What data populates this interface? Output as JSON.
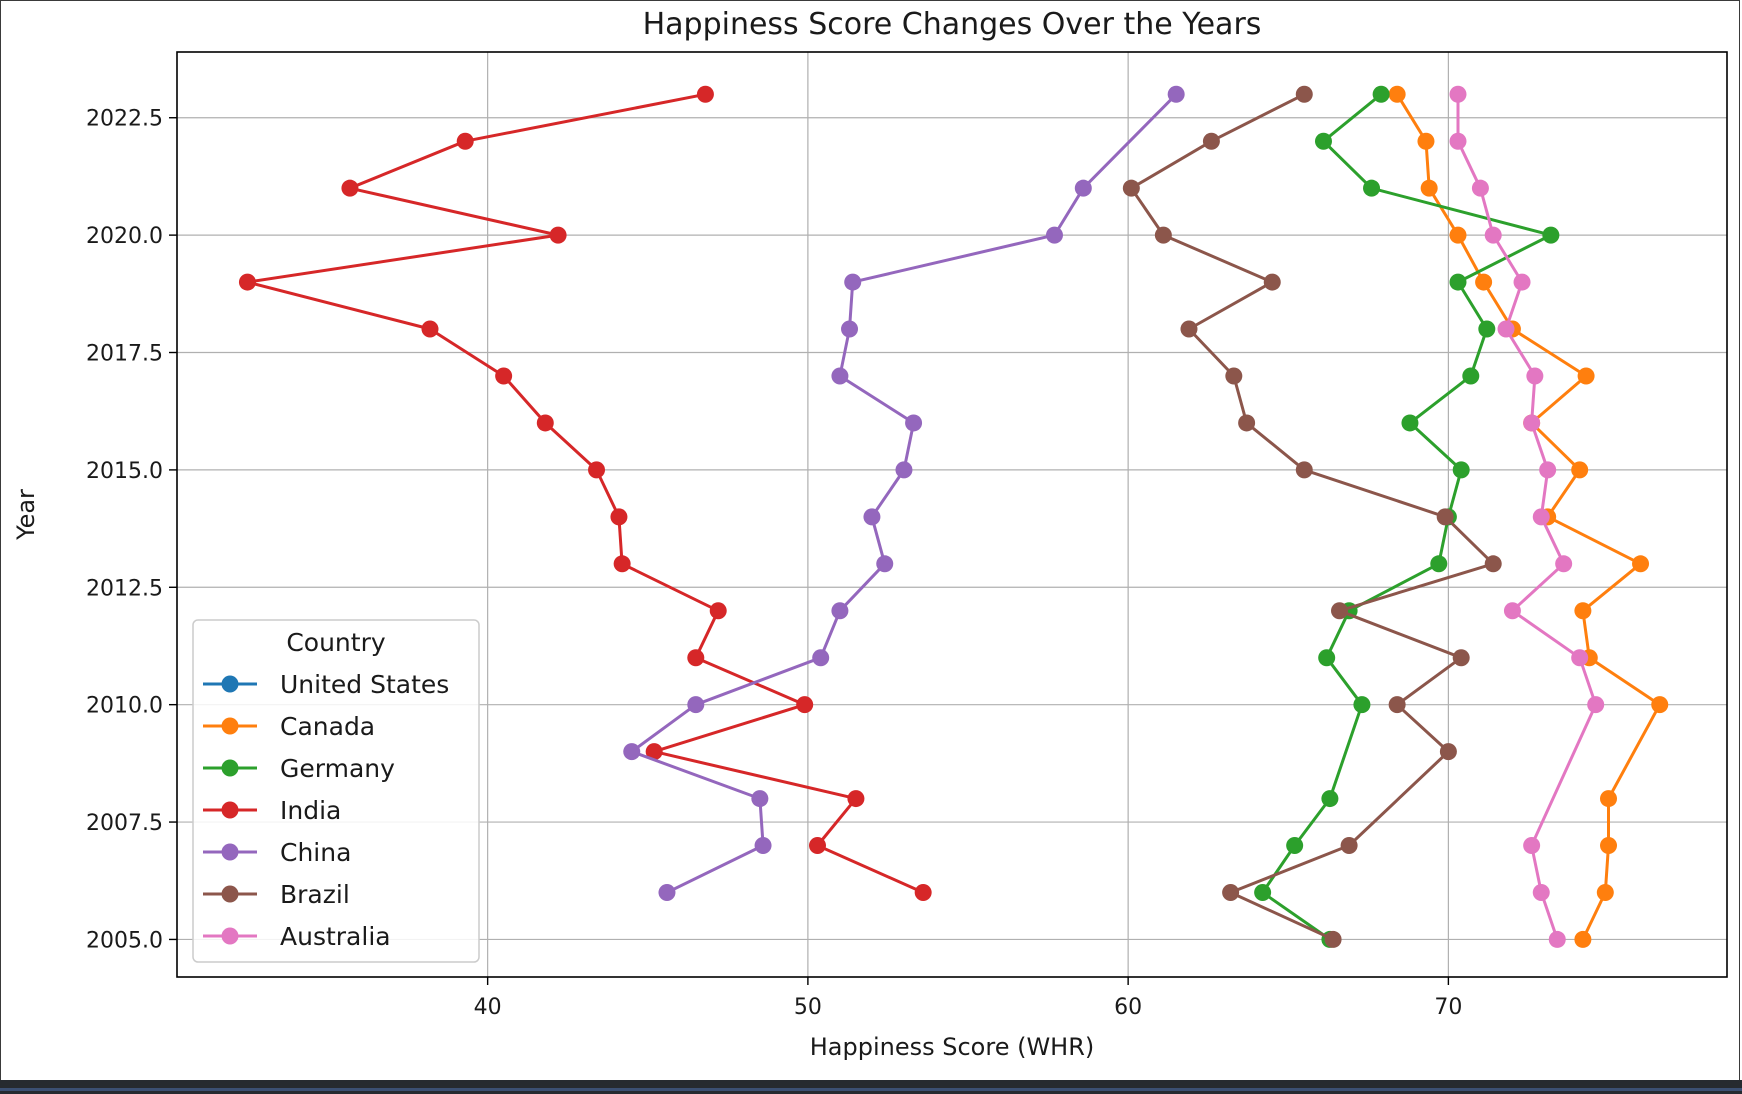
{
  "chart_data": {
    "type": "line",
    "title": "Happiness Score Changes Over the Years",
    "xlabel": "Happiness Score (WHR)",
    "ylabel": "Year",
    "xlim": [
      30.3,
      78.7
    ],
    "ylim": [
      2004.2,
      2023.9
    ],
    "xticks": [
      40,
      50,
      60,
      70
    ],
    "xtick_labels": [
      "40",
      "50",
      "60",
      "70"
    ],
    "yticks": [
      2005.0,
      2007.5,
      2010.0,
      2012.5,
      2015.0,
      2017.5,
      2020.0,
      2022.5
    ],
    "ytick_labels": [
      "2005.0",
      "2007.5",
      "2010.0",
      "2012.5",
      "2015.0",
      "2017.5",
      "2020.0",
      "2022.5"
    ],
    "grid": true,
    "legend": {
      "title": "Country",
      "placement": "lower-left"
    },
    "series": [
      {
        "name": "United States",
        "color": "#1f77b4",
        "points": []
      },
      {
        "name": "Canada",
        "color": "#ff7f0e",
        "points": [
          [
            74.2,
            2005
          ],
          [
            74.9,
            2006
          ],
          [
            75.0,
            2007
          ],
          [
            75.0,
            2008
          ],
          [
            76.6,
            2010
          ],
          [
            74.4,
            2011
          ],
          [
            74.2,
            2012
          ],
          [
            76.0,
            2013
          ],
          [
            73.1,
            2014
          ],
          [
            74.1,
            2015
          ],
          [
            72.6,
            2016
          ],
          [
            74.3,
            2017
          ],
          [
            72.0,
            2018
          ],
          [
            71.1,
            2019
          ],
          [
            70.3,
            2020
          ],
          [
            69.4,
            2021
          ],
          [
            69.3,
            2022
          ],
          [
            68.4,
            2023
          ]
        ]
      },
      {
        "name": "Germany",
        "color": "#2ca02c",
        "points": [
          [
            66.3,
            2005
          ],
          [
            64.2,
            2006
          ],
          [
            65.2,
            2007
          ],
          [
            66.3,
            2008
          ],
          [
            67.3,
            2010
          ],
          [
            66.2,
            2011
          ],
          [
            66.9,
            2012
          ],
          [
            69.7,
            2013
          ],
          [
            70.0,
            2014
          ],
          [
            70.4,
            2015
          ],
          [
            68.8,
            2016
          ],
          [
            70.7,
            2017
          ],
          [
            71.2,
            2018
          ],
          [
            70.3,
            2019
          ],
          [
            73.2,
            2020
          ],
          [
            67.6,
            2021
          ],
          [
            66.1,
            2022
          ],
          [
            67.9,
            2023
          ]
        ]
      },
      {
        "name": "India",
        "color": "#d62728",
        "points": [
          [
            53.6,
            2006
          ],
          [
            50.3,
            2007
          ],
          [
            51.5,
            2008
          ],
          [
            45.2,
            2009
          ],
          [
            49.9,
            2010
          ],
          [
            46.5,
            2011
          ],
          [
            47.2,
            2012
          ],
          [
            44.2,
            2013
          ],
          [
            44.1,
            2014
          ],
          [
            43.4,
            2015
          ],
          [
            41.8,
            2016
          ],
          [
            40.5,
            2017
          ],
          [
            38.2,
            2018
          ],
          [
            32.5,
            2019
          ],
          [
            42.2,
            2020
          ],
          [
            35.7,
            2021
          ],
          [
            39.3,
            2022
          ],
          [
            46.8,
            2023
          ]
        ]
      },
      {
        "name": "China",
        "color": "#9467bd",
        "points": [
          [
            45.6,
            2006
          ],
          [
            48.6,
            2007
          ],
          [
            48.5,
            2008
          ],
          [
            44.5,
            2009
          ],
          [
            46.5,
            2010
          ],
          [
            50.4,
            2011
          ],
          [
            51.0,
            2012
          ],
          [
            52.4,
            2013
          ],
          [
            52.0,
            2014
          ],
          [
            53.0,
            2015
          ],
          [
            53.3,
            2016
          ],
          [
            51.0,
            2017
          ],
          [
            51.3,
            2018
          ],
          [
            51.4,
            2019
          ],
          [
            57.7,
            2020
          ],
          [
            58.6,
            2021
          ],
          [
            61.5,
            2023
          ]
        ]
      },
      {
        "name": "Brazil",
        "color": "#8c564b",
        "points": [
          [
            66.4,
            2005
          ],
          [
            63.2,
            2006
          ],
          [
            66.9,
            2007
          ],
          [
            70.0,
            2009
          ],
          [
            68.4,
            2010
          ],
          [
            70.4,
            2011
          ],
          [
            66.6,
            2012
          ],
          [
            71.4,
            2013
          ],
          [
            69.9,
            2014
          ],
          [
            65.5,
            2015
          ],
          [
            63.7,
            2016
          ],
          [
            63.3,
            2017
          ],
          [
            61.9,
            2018
          ],
          [
            64.5,
            2019
          ],
          [
            61.1,
            2020
          ],
          [
            60.1,
            2021
          ],
          [
            62.6,
            2022
          ],
          [
            65.5,
            2023
          ]
        ]
      },
      {
        "name": "Australia",
        "color": "#e377c2",
        "points": [
          [
            73.4,
            2005
          ],
          [
            72.9,
            2006
          ],
          [
            72.6,
            2007
          ],
          [
            74.6,
            2010
          ],
          [
            74.1,
            2011
          ],
          [
            72.0,
            2012
          ],
          [
            73.6,
            2013
          ],
          [
            72.9,
            2014
          ],
          [
            73.1,
            2015
          ],
          [
            72.6,
            2016
          ],
          [
            72.7,
            2017
          ],
          [
            71.8,
            2018
          ],
          [
            72.3,
            2019
          ],
          [
            71.4,
            2020
          ],
          [
            71.0,
            2021
          ],
          [
            70.3,
            2022
          ],
          [
            70.3,
            2023
          ]
        ]
      }
    ]
  }
}
